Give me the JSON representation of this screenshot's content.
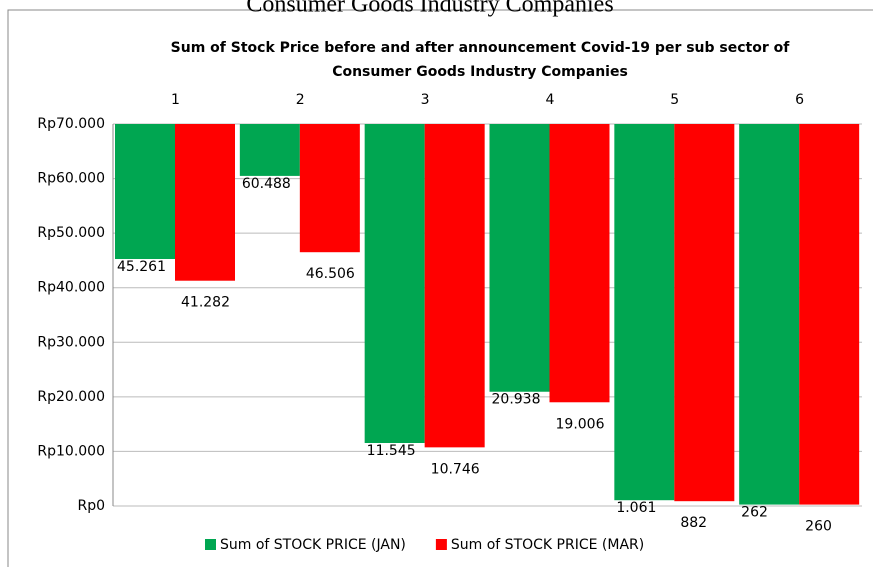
{
  "chart_data": {
    "type": "bar",
    "caption": "Consumer Goods Industry Companies",
    "title": "Sum of Stock Price before and after announcement Covid-19 per sub sector of Consumer Goods Industry Companies",
    "categories": [
      "1",
      "2",
      "3",
      "4",
      "5",
      "6"
    ],
    "series": [
      {
        "name": "Sum of STOCK PRICE (JAN)",
        "color": "#00a651",
        "values": [
          45261,
          60488,
          11545,
          20938,
          1061,
          262
        ],
        "value_labels": [
          "45.261",
          "60.488",
          "11.545",
          "20.938",
          "1.061",
          "262"
        ]
      },
      {
        "name": "Sum of STOCK PRICE (MAR)",
        "color": "#ff0000",
        "values": [
          41282,
          46506,
          10746,
          19006,
          882,
          260
        ],
        "value_labels": [
          "41.282",
          "46.506",
          "10.746",
          "19.006",
          "882",
          "260"
        ]
      }
    ],
    "ylim": [
      0,
      70000
    ],
    "yticks": [
      {
        "value": 0,
        "label": "Rp0"
      },
      {
        "value": 10000,
        "label": "Rp10.000"
      },
      {
        "value": 20000,
        "label": "Rp20.000"
      },
      {
        "value": 30000,
        "label": "Rp30.000"
      },
      {
        "value": 40000,
        "label": "Rp40.000"
      },
      {
        "value": 50000,
        "label": "Rp50.000"
      },
      {
        "value": 60000,
        "label": "Rp60.000"
      },
      {
        "value": 70000,
        "label": "Rp70.000"
      }
    ],
    "grid": true,
    "legend": "bottom"
  }
}
